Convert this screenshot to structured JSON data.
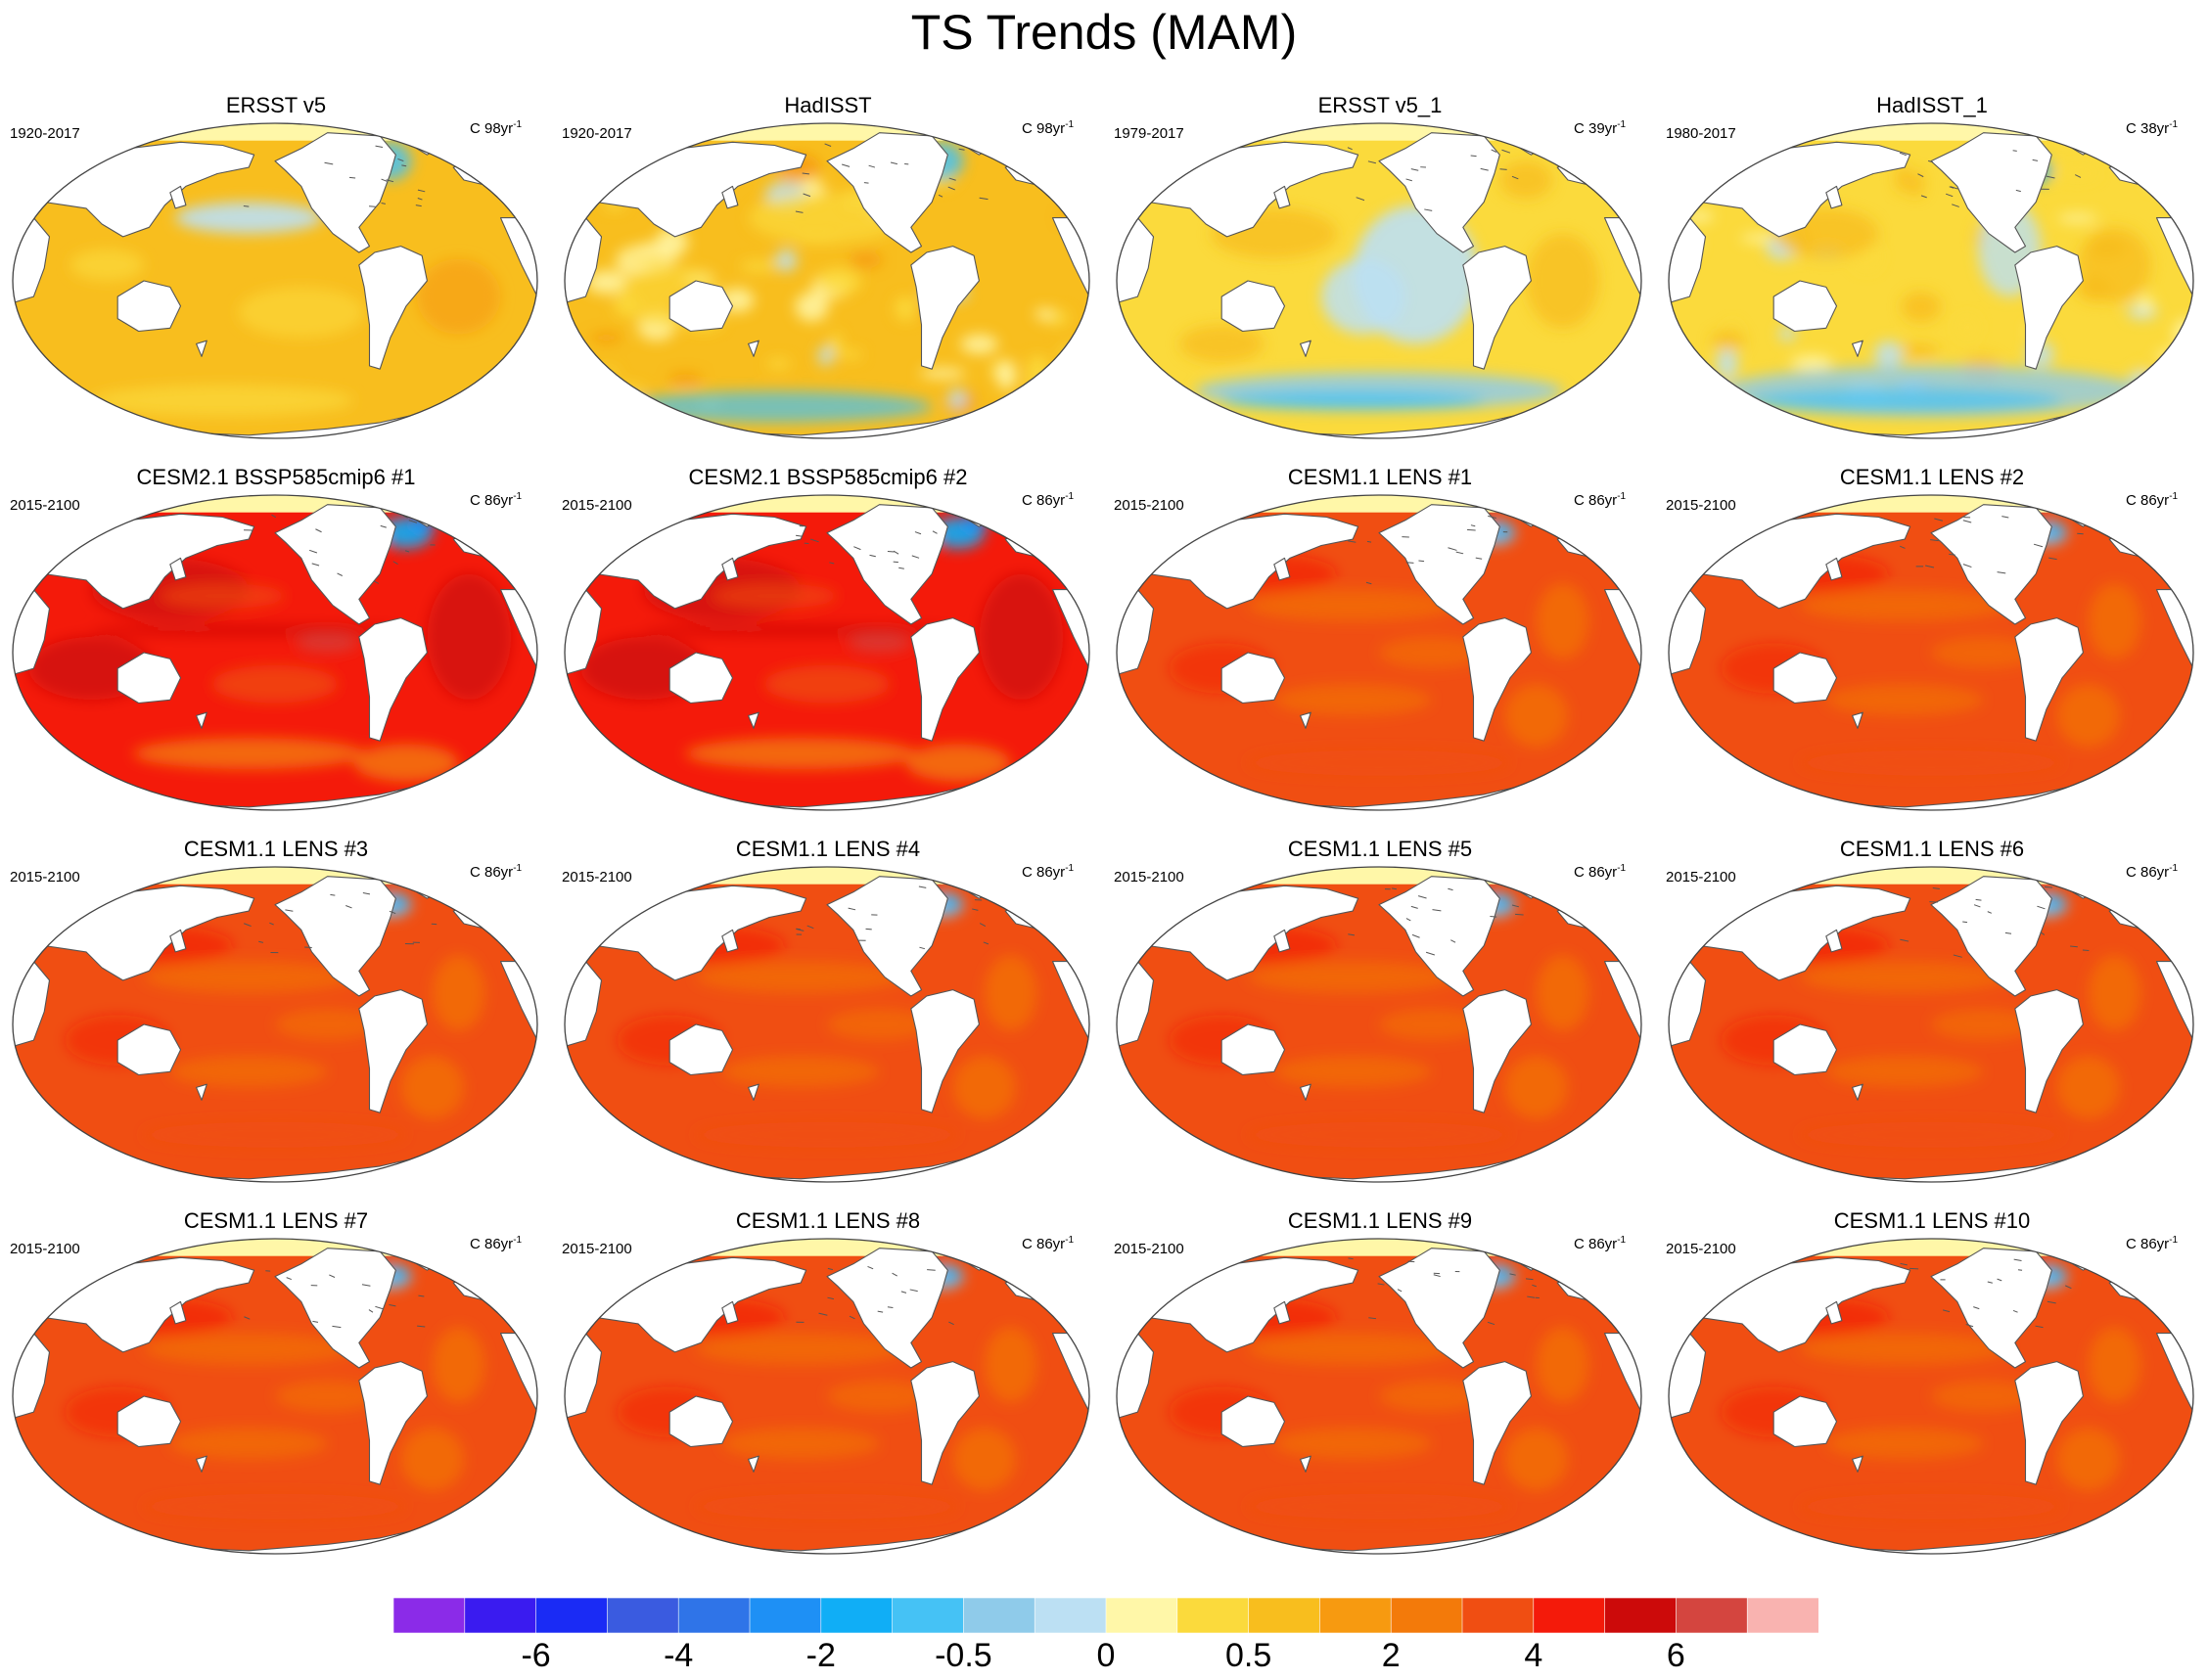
{
  "title": "TS Trends (MAM)",
  "panels": [
    {
      "title": "ERSST v5",
      "period": "1920-2017",
      "units_prefix": "C 98yr",
      "units_exp": "-1",
      "regime": "obs-smooth"
    },
    {
      "title": "HadISST",
      "period": "1920-2017",
      "units_prefix": "C 98yr",
      "units_exp": "-1",
      "regime": "obs-noisy"
    },
    {
      "title": "ERSST v5_1",
      "period": "1979-2017",
      "units_prefix": "C 39yr",
      "units_exp": "-1",
      "regime": "obs-recent"
    },
    {
      "title": "HadISST_1",
      "period": "1980-2017",
      "units_prefix": "C 38yr",
      "units_exp": "-1",
      "regime": "obs-recent-noisy"
    },
    {
      "title": "CESM2.1 BSSP585cmip6 #1",
      "period": "2015-2100",
      "units_prefix": "C 86yr",
      "units_exp": "-1",
      "regime": "cesm2"
    },
    {
      "title": "CESM2.1 BSSP585cmip6 #2",
      "period": "2015-2100",
      "units_prefix": "C 86yr",
      "units_exp": "-1",
      "regime": "cesm2"
    },
    {
      "title": "CESM1.1 LENS #1",
      "period": "2015-2100",
      "units_prefix": "C 86yr",
      "units_exp": "-1",
      "regime": "lens"
    },
    {
      "title": "CESM1.1 LENS #2",
      "period": "2015-2100",
      "units_prefix": "C 86yr",
      "units_exp": "-1",
      "regime": "lens"
    },
    {
      "title": "CESM1.1 LENS #3",
      "period": "2015-2100",
      "units_prefix": "C 86yr",
      "units_exp": "-1",
      "regime": "lens"
    },
    {
      "title": "CESM1.1 LENS #4",
      "period": "2015-2100",
      "units_prefix": "C 86yr",
      "units_exp": "-1",
      "regime": "lens"
    },
    {
      "title": "CESM1.1 LENS #5",
      "period": "2015-2100",
      "units_prefix": "C 86yr",
      "units_exp": "-1",
      "regime": "lens"
    },
    {
      "title": "CESM1.1 LENS #6",
      "period": "2015-2100",
      "units_prefix": "C 86yr",
      "units_exp": "-1",
      "regime": "lens"
    },
    {
      "title": "CESM1.1 LENS #7",
      "period": "2015-2100",
      "units_prefix": "C 86yr",
      "units_exp": "-1",
      "regime": "lens"
    },
    {
      "title": "CESM1.1 LENS #8",
      "period": "2015-2100",
      "units_prefix": "C 86yr",
      "units_exp": "-1",
      "regime": "lens"
    },
    {
      "title": "CESM1.1 LENS #9",
      "period": "2015-2100",
      "units_prefix": "C 86yr",
      "units_exp": "-1",
      "regime": "lens"
    },
    {
      "title": "CESM1.1 LENS #10",
      "period": "2015-2100",
      "units_prefix": "C 86yr",
      "units_exp": "-1",
      "regime": "lens"
    }
  ],
  "colorbar": {
    "colors": [
      "#8B2BE8",
      "#3A1BF0",
      "#1A2BF5",
      "#3A5BE0",
      "#2F74E8",
      "#1E90F5",
      "#10AEF6",
      "#45C2F5",
      "#8FCBEA",
      "#BCE0F3",
      "#FFF7A8",
      "#FBDA3C",
      "#F8BE1E",
      "#F79A10",
      "#F37A0A",
      "#F04E12",
      "#F41A0A",
      "#CC0A0A",
      "#D4453F",
      "#F9B3B0"
    ],
    "labels": [
      "-6",
      "-4",
      "-2",
      "-0.5",
      "0",
      "0.5",
      "2",
      "4",
      "6"
    ]
  },
  "colors": {
    "land": "#ffffff",
    "coast": "#555555",
    "frame": "#444444",
    "arctic": "#FFF7A8"
  }
}
